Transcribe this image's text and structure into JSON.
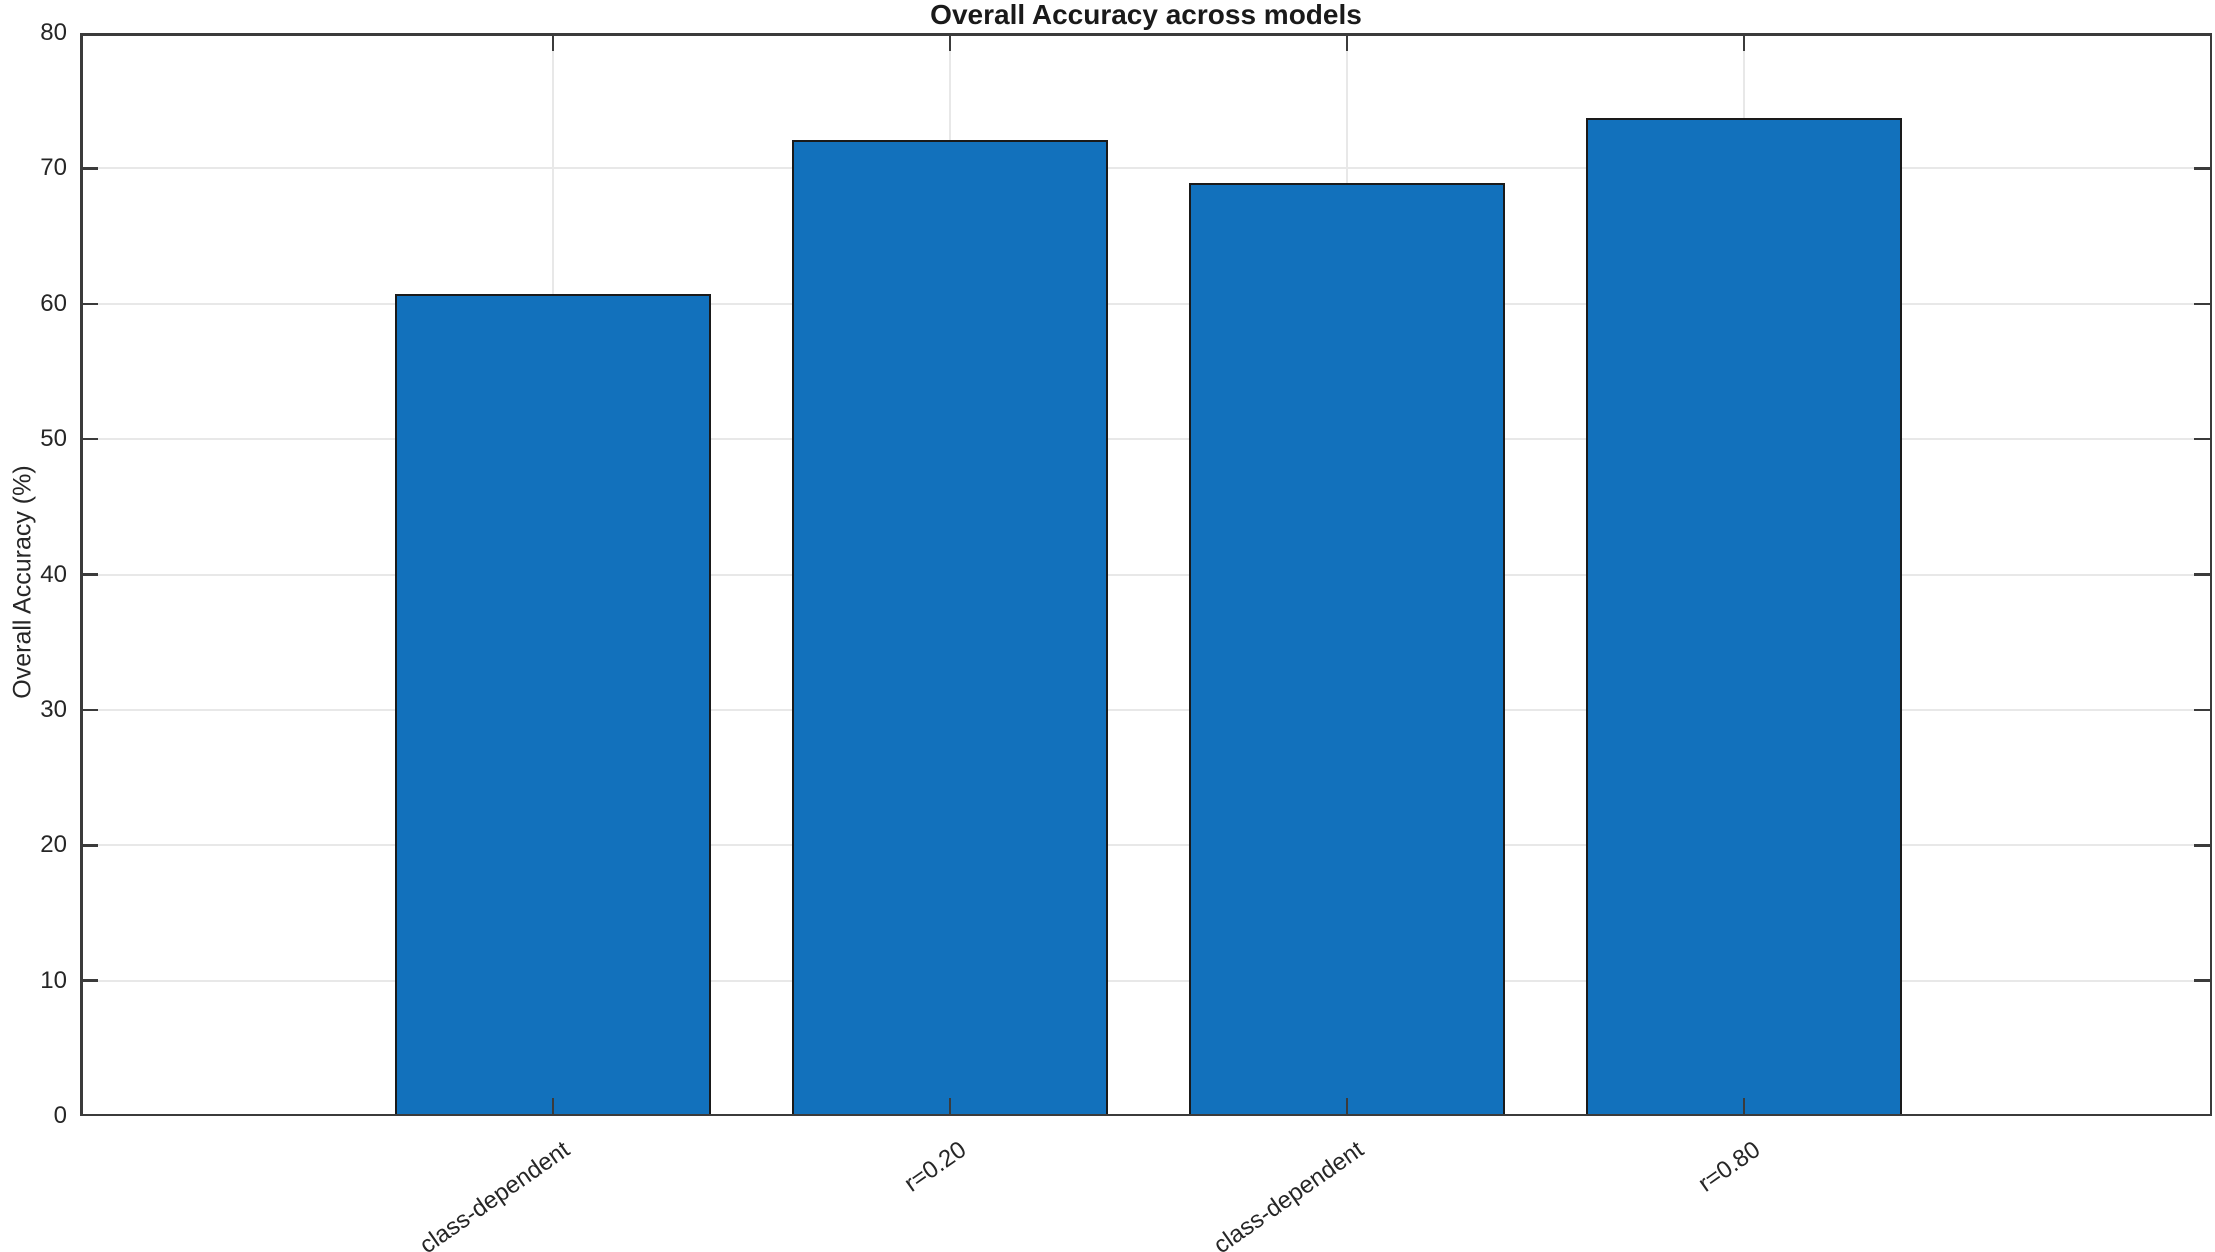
{
  "chart_data": {
    "type": "bar",
    "title": "Overall Accuracy across models",
    "xlabel": "",
    "ylabel": "Overall Accuracy (%)",
    "categories": [
      "class-dependent",
      "r=0.20",
      "class-dependent",
      "r=0.80"
    ],
    "values": [
      60.7,
      72.1,
      68.9,
      73.7
    ],
    "ylim": [
      0,
      80
    ],
    "yticks": [
      0,
      10,
      20,
      30,
      40,
      50,
      60,
      70,
      80
    ],
    "grid": true,
    "legend": "none",
    "x_tick_angle_deg": 35,
    "colors": {
      "bar_fill": "#1271bc",
      "bar_edge": "#1a1a1a",
      "axis": "#3b3b3b",
      "grid": "#e8e8e8",
      "text": "#262626",
      "title": "#1a1a1a",
      "background": "#ffffff"
    }
  }
}
